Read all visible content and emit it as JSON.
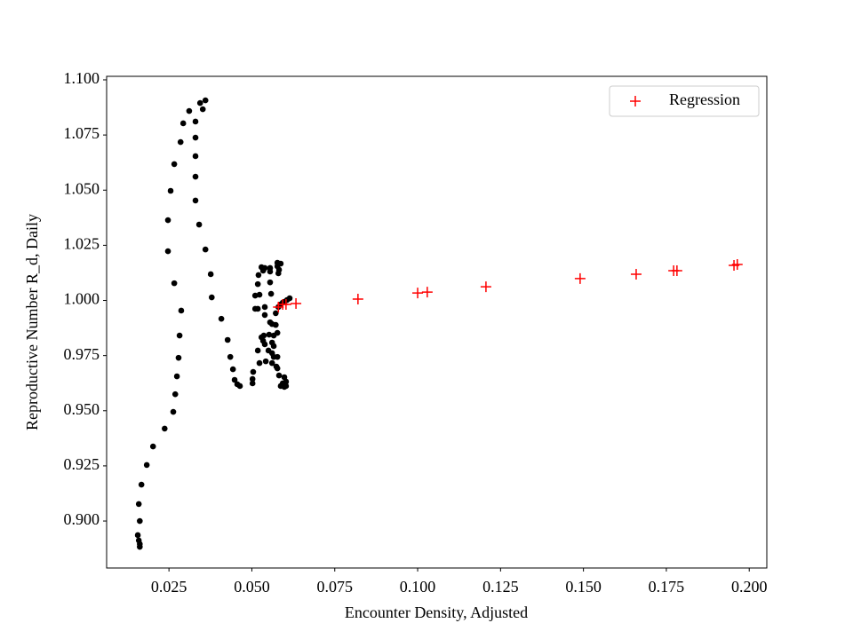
{
  "chart_data": {
    "type": "scatter",
    "xlabel": "Encounter Density, Adjusted",
    "ylabel": "Reproductive Number R_d, Daily",
    "xlim": [
      0.0062,
      0.2053
    ],
    "ylim": [
      0.8787,
      1.1016
    ],
    "xticks": [
      0.025,
      {
        "value": 0.05,
        "label": "0.050"
      },
      0.075,
      {
        "value": 0.1,
        "label": "0.100"
      },
      0.125,
      {
        "value": 0.15,
        "label": "0.150"
      },
      0.175,
      {
        "value": 0.2,
        "label": "0.200"
      }
    ],
    "yticks": [
      {
        "value": 0.9,
        "label": "0.900"
      },
      0.925,
      {
        "value": 0.95,
        "label": "0.950"
      },
      0.975,
      {
        "value": 1.0,
        "label": "1.000"
      },
      1.025,
      {
        "value": 1.05,
        "label": "1.050"
      },
      1.075,
      {
        "value": 1.1,
        "label": "1.100"
      }
    ],
    "legend": "upper right",
    "series": [
      {
        "color": "#000000",
        "marker": "o",
        "x": [
          0.0156,
          0.0159,
          0.0162,
          0.0162,
          0.0159,
          0.0162,
          0.0167,
          0.0183,
          0.0202,
          0.0237,
          0.0263,
          0.0269,
          0.0274,
          0.0279,
          0.0282,
          0.0287,
          0.0266,
          0.0247,
          0.0247,
          0.0255,
          0.0266,
          0.0285,
          0.0293,
          0.0311,
          0.033,
          0.033,
          0.033,
          0.033,
          0.033,
          0.0341,
          0.036,
          0.0376,
          0.0379,
          0.0344,
          0.0352,
          0.036,
          0.0408,
          0.0427,
          0.0435,
          0.0443,
          0.0448,
          0.0456,
          0.0464,
          0.0502,
          0.0502,
          0.0504,
          0.051,
          0.051,
          0.0518,
          0.052,
          0.0529,
          0.0518,
          0.0523,
          0.0536,
          0.0539,
          0.0539,
          0.0542,
          0.055,
          0.0552,
          0.0555,
          0.0558,
          0.0555,
          0.0555,
          0.0561,
          0.0566,
          0.0566,
          0.0566,
          0.0572,
          0.0572,
          0.0574,
          0.0577,
          0.0577,
          0.0582,
          0.0587,
          0.0593,
          0.0598,
          0.0598,
          0.0603,
          0.0603,
          0.0577,
          0.058,
          0.058,
          0.0587,
          0.0593,
          0.0598,
          0.0606,
          0.0614,
          0.0577,
          0.0587,
          0.0582,
          0.0539,
          0.0555,
          0.0534,
          0.0523,
          0.0534,
          0.0539,
          0.0561,
          0.0561,
          0.0561,
          0.0577,
          0.0518,
          0.0529
        ],
        "values": [
          0.8936,
          0.8912,
          0.8896,
          0.8883,
          0.9077,
          0.9,
          0.9165,
          0.9254,
          0.9338,
          0.9419,
          0.9495,
          0.9575,
          0.9656,
          0.974,
          0.9841,
          0.9954,
          1.0078,
          1.0223,
          1.0364,
          1.0497,
          1.0618,
          1.0718,
          1.0803,
          1.0859,
          1.0811,
          1.0738,
          1.0654,
          1.0561,
          1.0453,
          1.0344,
          1.0231,
          1.0119,
          1.0014,
          1.0895,
          1.0867,
          1.0907,
          0.9917,
          0.9821,
          0.9744,
          0.9688,
          0.964,
          0.962,
          0.9612,
          0.9644,
          0.9624,
          0.9676,
          0.9962,
          1.0022,
          1.0074,
          1.0115,
          1.0151,
          0.9773,
          0.9716,
          0.9841,
          0.9934,
          0.997,
          0.9724,
          0.9773,
          0.9845,
          0.9901,
          1.003,
          1.0082,
          1.0147,
          0.9716,
          0.9744,
          0.9793,
          0.9841,
          0.9889,
          0.9942,
          0.97,
          0.9744,
          0.9692,
          0.966,
          0.9612,
          0.9624,
          0.9652,
          0.9608,
          0.9632,
          0.9612,
          1.0155,
          1.0123,
          0.997,
          0.9982,
          0.999,
          0.9994,
          1.0002,
          1.001,
          1.0171,
          1.0167,
          1.0139,
          1.0147,
          1.0131,
          1.0135,
          1.0026,
          0.9817,
          0.9801,
          0.9809,
          0.9761,
          0.9893,
          0.9853,
          0.9962,
          0.9833
        ]
      },
      {
        "name": "Regression",
        "color": "#ff0000",
        "marker": "+",
        "x": [
          0.058,
          0.0593,
          0.0603,
          0.0633,
          0.082,
          0.1,
          0.1029,
          0.1206,
          0.149,
          0.1659,
          0.1772,
          0.1782,
          0.1954,
          0.1964
        ],
        "values": [
          0.997,
          0.9982,
          0.9982,
          0.9986,
          1.0006,
          1.0034,
          1.0038,
          1.0062,
          1.0099,
          1.0119,
          1.0135,
          1.0135,
          1.0159,
          1.0163
        ]
      }
    ]
  }
}
